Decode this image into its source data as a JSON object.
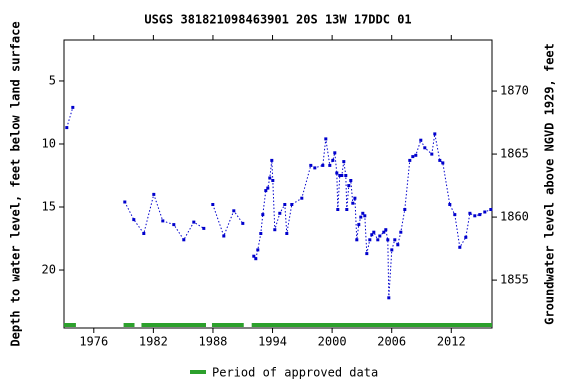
{
  "chart_data": {
    "type": "line",
    "title": "USGS 381821098463901 20S 13W 17DDC 01",
    "y_label": "Depth to water level, feet below land surface",
    "y2_label": "Groundwater level above NGVD 1929, feet",
    "legend_label": "Period of approved data",
    "xlim": [
      1973.0,
      2016.1
    ],
    "xticks": [
      1976,
      1982,
      1988,
      1994,
      2000,
      2006,
      2012
    ],
    "ylim": [
      1.75,
      24.6
    ],
    "yticks": [
      5,
      10,
      15,
      20
    ],
    "y2lim": [
      1874.05,
      1851.2
    ],
    "y2ticks": [
      1855,
      1860,
      1865,
      1870
    ],
    "approved_color": "#2ca02c",
    "approved_periods": [
      [
        1973.0,
        1974.2
      ],
      [
        1979.0,
        1980.1
      ],
      [
        1980.8,
        1987.3
      ],
      [
        1987.9,
        1991.1
      ],
      [
        1991.9,
        2016.1
      ]
    ],
    "series": [
      {
        "name": "Depth to water level",
        "color": "#0000cc",
        "x": [
          1973.28,
          1973.89,
          null,
          1979.12,
          1980.03,
          1981.04,
          1982.04,
          1982.95,
          1984.06,
          1985.06,
          1986.07,
          1987.08,
          null,
          1987.98,
          1989.09,
          1990.1,
          1991.01,
          null,
          1992.11,
          1992.31,
          1992.52,
          1992.82,
          1993.02,
          1993.32,
          1993.52,
          1993.72,
          1993.93,
          1994.03,
          1994.23,
          1994.73,
          1995.23,
          1995.44,
          1995.94,
          1996.95,
          1997.85,
          1998.26,
          1999.06,
          1999.36,
          1999.77,
          2000.07,
          2000.27,
          2000.47,
          2000.57,
          2000.77,
          2000.97,
          2001.18,
          2001.38,
          2001.48,
          2001.68,
          2001.88,
          2002.08,
          2002.29,
          2002.49,
          2002.69,
          2002.89,
          2003.09,
          2003.29,
          2003.49,
          2003.79,
          2004.0,
          2004.2,
          2004.6,
          2004.8,
          2005.2,
          2005.41,
          2005.61,
          2005.71,
          2006.01,
          2006.31,
          2006.61,
          2006.92,
          2007.32,
          2007.82,
          2008.12,
          2008.43,
          2008.93,
          2009.33,
          2010.04,
          2010.34,
          2010.84,
          2011.15,
          2011.85,
          2012.35,
          2012.86,
          2013.46,
          2013.87,
          2014.37,
          2014.87,
          2015.37,
          2015.98
        ],
        "values": [
          8.7,
          7.1,
          null,
          14.6,
          16.0,
          17.1,
          14.0,
          16.1,
          16.4,
          17.6,
          16.2,
          16.7,
          null,
          14.8,
          17.3,
          15.3,
          16.3,
          null,
          18.9,
          19.1,
          18.4,
          17.1,
          15.6,
          13.7,
          13.5,
          12.7,
          11.3,
          12.9,
          16.8,
          15.5,
          14.8,
          17.1,
          14.8,
          14.3,
          11.7,
          11.9,
          11.7,
          9.6,
          11.7,
          11.3,
          10.7,
          12.3,
          15.2,
          12.5,
          12.5,
          11.4,
          12.5,
          15.2,
          13.3,
          12.9,
          14.7,
          14.3,
          17.6,
          16.4,
          15.8,
          15.5,
          15.7,
          18.7,
          17.6,
          17.2,
          17.0,
          17.6,
          17.3,
          17.0,
          16.8,
          17.6,
          22.2,
          18.4,
          17.6,
          18.0,
          17.0,
          15.2,
          11.3,
          11.0,
          10.9,
          9.7,
          10.3,
          10.8,
          9.2,
          11.3,
          11.5,
          14.8,
          15.6,
          18.2,
          17.4,
          15.5,
          15.7,
          15.6,
          15.4,
          15.2
        ]
      }
    ]
  }
}
